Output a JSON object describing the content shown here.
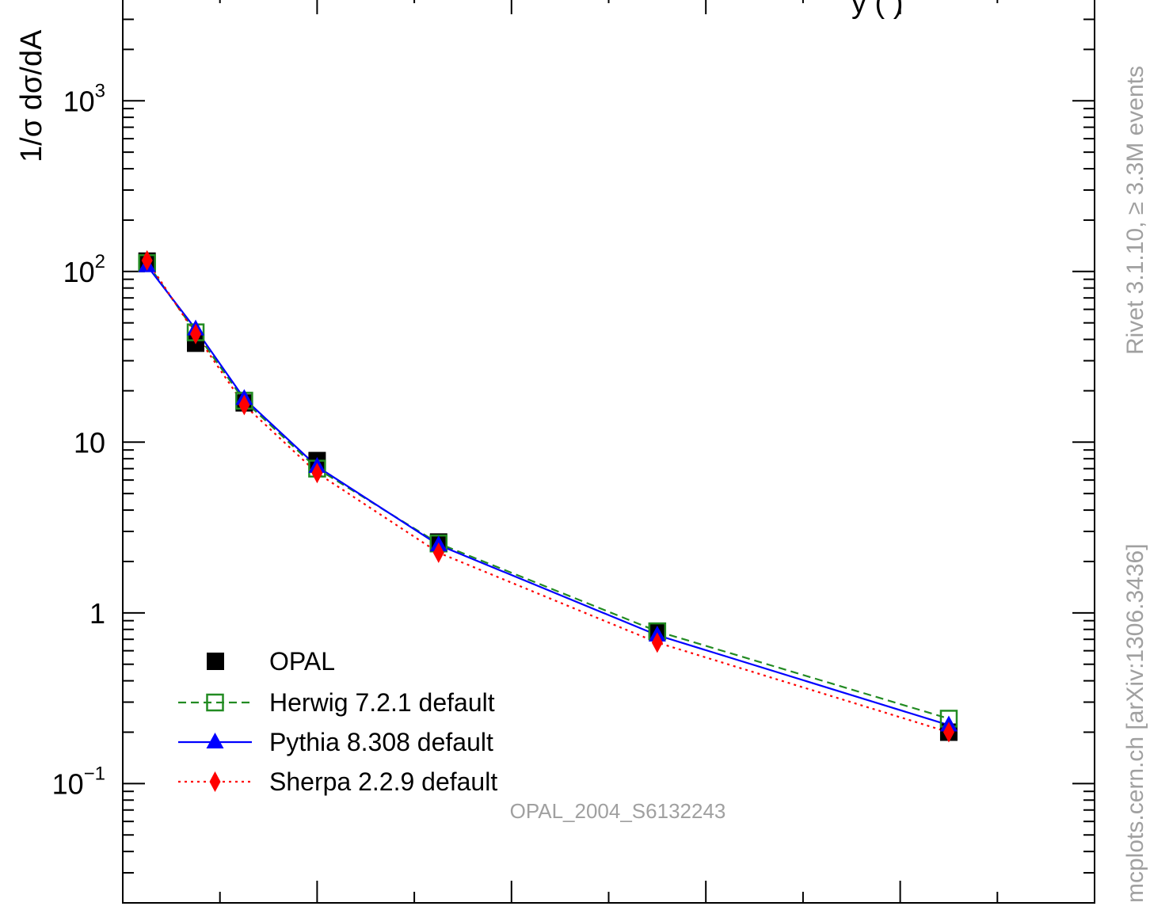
{
  "chart_data": {
    "type": "line",
    "ylabel": "1/σ dσ/dA",
    "yscale": "log",
    "ylim": [
      0.02,
      3500
    ],
    "xlim": [
      0,
      0.5
    ],
    "x_ticks_labeled": false,
    "y_tick_labels": [
      {
        "value": 0.1,
        "base": "10",
        "exp": "−1"
      },
      {
        "value": 1,
        "base": "1",
        "exp": ""
      },
      {
        "value": 10,
        "base": "10",
        "exp": ""
      },
      {
        "value": 100,
        "base": "10",
        "exp": "2"
      },
      {
        "value": 1000,
        "base": "10",
        "exp": "3"
      }
    ],
    "x": [
      0.0125,
      0.0375,
      0.0625,
      0.1,
      0.1625,
      0.275,
      0.425
    ],
    "series": [
      {
        "name": "OPAL",
        "marker": "square-filled",
        "line": "none",
        "color": "#000000",
        "values": [
          115,
          38,
          17,
          7.8,
          2.6,
          0.78,
          0.2
        ]
      },
      {
        "name": "Herwig 7.2.1 default",
        "marker": "square-open",
        "line": "dashed",
        "color": "#228b22",
        "values": [
          112,
          44,
          17.5,
          7.0,
          2.55,
          0.78,
          0.24
        ]
      },
      {
        "name": "Pythia 8.308 default",
        "marker": "triangle-filled",
        "line": "solid",
        "color": "#0000ff",
        "values": [
          108,
          46,
          18,
          7.2,
          2.5,
          0.74,
          0.22
        ]
      },
      {
        "name": "Sherpa 2.2.9 default",
        "marker": "diamond-filled",
        "line": "dotted",
        "color": "#ff0000",
        "values": [
          116,
          43,
          16.5,
          6.6,
          2.25,
          0.67,
          0.2
        ]
      }
    ],
    "legend_position": "bottom-left",
    "grid": false,
    "annotation": "OPAL_2004_S6132243",
    "side_labels": {
      "top": "Rivet 3.1.10, ≥ 3.3M events",
      "bottom": "mcplots.cern.ch [arXiv:1306.3436]"
    },
    "title_fragment": "y  (           )"
  }
}
